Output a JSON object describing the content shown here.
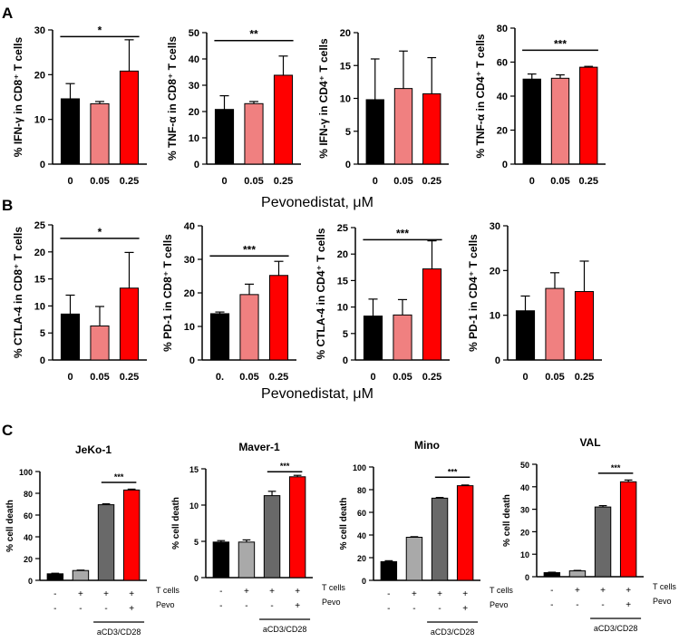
{
  "figure": {
    "panel_labels": [
      "A",
      "B",
      "C"
    ],
    "row_xlabels": {
      "A": "Pevonedistat, μM",
      "B": "Pevonedistat, μM"
    },
    "c_row_labels": {
      "tcells": "T cells",
      "pevo": "Pevo",
      "bracket": "aCD3/CD28"
    }
  },
  "colors": {
    "black": "#000000",
    "pink": "#f08080",
    "red": "#ff0000",
    "dark_gray": "#696969",
    "light_gray": "#a9a9a9"
  },
  "chart_data": [
    {
      "id": "A1",
      "type": "bar",
      "panel": "A",
      "ylabel": "% IFN-γ in CD8⁺ T cells",
      "ylim": [
        0,
        30
      ],
      "yticks": [
        0,
        10,
        20,
        30
      ],
      "categories": [
        "0",
        "0.05",
        "0.25"
      ],
      "values": [
        14.6,
        13.5,
        20.8
      ],
      "errors": [
        3.4,
        0.5,
        7.0
      ],
      "colors": [
        "black",
        "pink",
        "red"
      ],
      "significance": [
        {
          "from": 0,
          "to": 2,
          "label": "*",
          "y": 28.5
        }
      ]
    },
    {
      "id": "A2",
      "type": "bar",
      "panel": "A",
      "ylabel": "% TNF-α in CD8⁺ T cells",
      "ylim": [
        0,
        50
      ],
      "yticks": [
        0,
        10,
        20,
        30,
        40,
        50
      ],
      "categories": [
        "0",
        "0.05",
        "0.25"
      ],
      "values": [
        20.8,
        23.0,
        33.8
      ],
      "errors": [
        5.2,
        0.8,
        7.3
      ],
      "colors": [
        "black",
        "pink",
        "red"
      ],
      "significance": [
        {
          "from": 0,
          "to": 2,
          "label": "**",
          "y": 47.0
        }
      ]
    },
    {
      "id": "A3",
      "type": "bar",
      "panel": "A",
      "ylabel": "% IFN-γ in CD4⁺ T cells",
      "ylim": [
        0,
        20
      ],
      "yticks": [
        0,
        5,
        10,
        15,
        20
      ],
      "categories": [
        "0",
        "0.05",
        "0.25"
      ],
      "values": [
        9.8,
        11.5,
        10.7
      ],
      "errors": [
        6.2,
        5.7,
        5.5
      ],
      "colors": [
        "black",
        "pink",
        "red"
      ],
      "significance": []
    },
    {
      "id": "A4",
      "type": "bar",
      "panel": "A",
      "ylabel": "% TNF-α in CD4⁺ T cells",
      "ylim": [
        0,
        80
      ],
      "yticks": [
        0,
        20,
        40,
        60,
        80
      ],
      "categories": [
        "0",
        "0.05",
        "0.25"
      ],
      "values": [
        50.0,
        50.5,
        57.0
      ],
      "errors": [
        3.0,
        2.0,
        0.5
      ],
      "colors": [
        "black",
        "pink",
        "red"
      ],
      "significance": [
        {
          "from": 0,
          "to": 2,
          "label": "***",
          "y": 67.0
        }
      ]
    },
    {
      "id": "B1",
      "type": "bar",
      "panel": "B",
      "ylabel": "% CTLA-4 in CD8⁺ T cells",
      "ylim": [
        0,
        25
      ],
      "yticks": [
        0,
        5,
        10,
        15,
        20,
        25
      ],
      "categories": [
        "0",
        "0.05",
        "0.25"
      ],
      "values": [
        8.5,
        6.3,
        13.3
      ],
      "errors": [
        3.5,
        3.6,
        6.6
      ],
      "colors": [
        "black",
        "pink",
        "red"
      ],
      "significance": [
        {
          "from": 0,
          "to": 2,
          "label": "*",
          "y": 22.5
        }
      ]
    },
    {
      "id": "B2",
      "type": "bar",
      "panel": "B",
      "ylabel": "% PD-1 in CD8⁺ T cells",
      "ylim": [
        0,
        40
      ],
      "yticks": [
        0,
        10,
        20,
        30,
        40
      ],
      "categories": [
        "0.",
        "0.05",
        "0.25"
      ],
      "values": [
        13.8,
        19.5,
        25.2
      ],
      "errors": [
        0.5,
        3.1,
        4.2
      ],
      "colors": [
        "black",
        "pink",
        "red"
      ],
      "significance": [
        {
          "from": 0,
          "to": 2,
          "label": "***",
          "y": 31.0
        }
      ]
    },
    {
      "id": "B3",
      "type": "bar",
      "panel": "B",
      "ylabel": "% CTLA-4 in CD4⁺ T cells",
      "ylim": [
        0,
        25
      ],
      "yticks": [
        0,
        5,
        10,
        15,
        20,
        25
      ],
      "categories": [
        "0",
        "0.05",
        "0.25"
      ],
      "values": [
        8.3,
        8.5,
        17.2
      ],
      "errors": [
        3.2,
        2.9,
        5.3
      ],
      "colors": [
        "black",
        "pink",
        "red"
      ],
      "significance": [
        {
          "from": 0,
          "to": 2,
          "label": "***",
          "y": 22.7
        }
      ]
    },
    {
      "id": "B4",
      "type": "bar",
      "panel": "B",
      "ylabel": "% PD-1 in CD4⁺ T cells",
      "ylim": [
        0,
        30
      ],
      "yticks": [
        0,
        10,
        20,
        30
      ],
      "categories": [
        "0",
        "0.05",
        "0.25"
      ],
      "values": [
        11.0,
        16.0,
        15.3
      ],
      "errors": [
        3.3,
        3.5,
        6.8
      ],
      "colors": [
        "black",
        "pink",
        "red"
      ],
      "significance": []
    },
    {
      "id": "C1",
      "type": "bar",
      "panel": "C",
      "title": "JeKo-1",
      "ylabel": "% cell death",
      "ylim": [
        0,
        100
      ],
      "yticks": [
        0,
        20,
        40,
        60,
        80,
        100
      ],
      "tcells": [
        "-",
        "+",
        "+",
        "+"
      ],
      "pevo": [
        "-",
        "-",
        "-",
        "+"
      ],
      "values": [
        6.0,
        9.0,
        69.5,
        83.0
      ],
      "errors": [
        0.5,
        0.4,
        0.8,
        0.8
      ],
      "colors": [
        "black",
        "light_gray",
        "dark_gray",
        "red"
      ],
      "significance": [
        {
          "from": 2,
          "to": 3,
          "label": "***",
          "y": 90.0
        }
      ]
    },
    {
      "id": "C2",
      "type": "bar",
      "panel": "C",
      "title": "Maver-1",
      "ylabel": "% cell death",
      "ylim": [
        0,
        15
      ],
      "yticks": [
        0,
        5,
        10,
        15
      ],
      "tcells": [
        "-",
        "+",
        "+",
        "+"
      ],
      "pevo": [
        "-",
        "-",
        "-",
        "+"
      ],
      "values": [
        4.9,
        4.9,
        11.3,
        13.9
      ],
      "errors": [
        0.2,
        0.3,
        0.6,
        0.2
      ],
      "colors": [
        "black",
        "light_gray",
        "dark_gray",
        "red"
      ],
      "significance": [
        {
          "from": 2,
          "to": 3,
          "label": "***",
          "y": 14.6
        }
      ]
    },
    {
      "id": "C3",
      "type": "bar",
      "panel": "C",
      "title": "Mino",
      "ylabel": "% cell death",
      "ylim": [
        0,
        100
      ],
      "yticks": [
        0,
        20,
        40,
        60,
        80,
        100
      ],
      "tcells": [
        "-",
        "+",
        "+",
        "+"
      ],
      "pevo": [
        "-",
        "-",
        "-",
        "+"
      ],
      "values": [
        16.5,
        38.0,
        72.5,
        83.5
      ],
      "errors": [
        0.8,
        0.5,
        0.6,
        0.6
      ],
      "colors": [
        "black",
        "light_gray",
        "dark_gray",
        "red"
      ],
      "significance": [
        {
          "from": 2,
          "to": 3,
          "label": "***",
          "y": 91.0
        }
      ]
    },
    {
      "id": "C4",
      "type": "bar",
      "panel": "C",
      "title": "VAL",
      "ylabel": "% cell death",
      "ylim": [
        0,
        50
      ],
      "yticks": [
        0,
        10,
        20,
        30,
        40,
        50
      ],
      "tcells": [
        "-",
        "+",
        "+",
        "+"
      ],
      "pevo": [
        "-",
        "-",
        "-",
        "+"
      ],
      "values": [
        1.8,
        2.6,
        31.0,
        42.2
      ],
      "errors": [
        0.2,
        0.2,
        0.6,
        0.8
      ],
      "colors": [
        "black",
        "light_gray",
        "dark_gray",
        "red"
      ],
      "significance": [
        {
          "from": 2,
          "to": 3,
          "label": "***",
          "y": 46.0
        }
      ]
    }
  ]
}
